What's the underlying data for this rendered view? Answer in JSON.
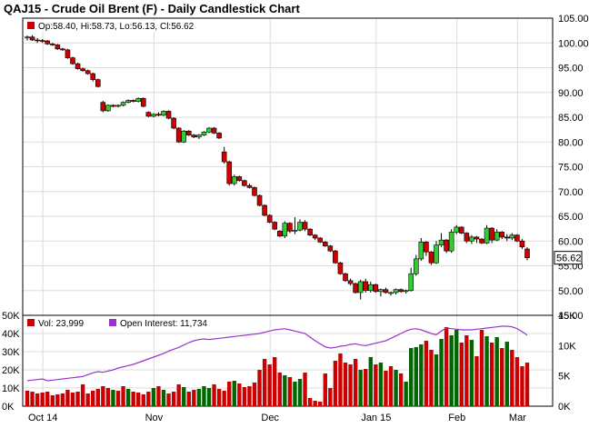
{
  "header": {
    "title": "QAJ15 - Crude Oil Brent (F) - Daily Candlestick Chart"
  },
  "price_legend": {
    "ohlc_text": "Op:58.40, Hi:58.73, Lo:56.13, Cl:56.62",
    "color": "#cc0000"
  },
  "volume_legend": {
    "vol_text": "Vol: 23,999",
    "oi_text": "Open Interest: 11,734",
    "vol_color": "#cc0000",
    "oi_color": "#9933cc"
  },
  "current_price": "56.62",
  "colors": {
    "up": "#33cc33",
    "down": "#cc0000",
    "vol_up": "#006600",
    "vol_down": "#cc0000",
    "open_interest": "#9933cc",
    "grid": "#dddddd",
    "axis": "#000000"
  },
  "chart_data": [
    {
      "type": "candlestick",
      "title": "QAJ15 - Crude Oil Brent (F) - Daily Candlestick Chart",
      "x_tick_labels": [
        "Oct 14",
        "Nov",
        "Dec",
        "Jan 15",
        "Feb",
        "Mar"
      ],
      "y_ticks": [
        105,
        100,
        95,
        90,
        85,
        80,
        75,
        70,
        65,
        60,
        55,
        50,
        45
      ],
      "ylim": [
        45,
        105
      ],
      "grid": true,
      "series": [
        {
          "name": "QAJ15",
          "ohlc": [
            [
              101.0,
              101.5,
              100.5,
              101.2
            ],
            [
              101.2,
              101.6,
              100.4,
              100.6
            ],
            [
              100.6,
              101.0,
              100.0,
              100.5
            ],
            [
              100.5,
              100.8,
              100.0,
              100.4
            ],
            [
              100.4,
              100.6,
              99.6,
              99.8
            ],
            [
              99.8,
              100.0,
              99.4,
              99.6
            ],
            [
              99.6,
              99.8,
              98.6,
              98.8
            ],
            [
              98.8,
              99.0,
              98.4,
              98.6
            ],
            [
              98.6,
              98.8,
              96.8,
              97.0
            ],
            [
              97.0,
              97.2,
              95.6,
              95.8
            ],
            [
              95.8,
              96.0,
              94.6,
              94.8
            ],
            [
              94.8,
              95.0,
              94.2,
              94.4
            ],
            [
              94.4,
              94.6,
              93.6,
              93.8
            ],
            [
              93.8,
              94.0,
              92.2,
              92.6
            ],
            [
              92.6,
              92.8,
              91.0,
              91.2
            ],
            [
              88.0,
              88.3,
              86.0,
              86.3
            ],
            [
              86.3,
              87.6,
              86.1,
              87.4
            ],
            [
              87.4,
              87.6,
              87.0,
              87.2
            ],
            [
              87.2,
              87.6,
              87.0,
              87.4
            ],
            [
              87.4,
              88.2,
              87.2,
              88.0
            ],
            [
              88.0,
              88.6,
              87.8,
              88.4
            ],
            [
              88.4,
              88.6,
              88.0,
              88.2
            ],
            [
              88.2,
              89.0,
              88.0,
              88.8
            ],
            [
              88.8,
              89.0,
              87.0,
              87.2
            ],
            [
              86.0,
              86.2,
              85.0,
              85.2
            ],
            [
              85.2,
              85.8,
              85.0,
              85.6
            ],
            [
              85.6,
              86.0,
              85.2,
              85.4
            ],
            [
              85.4,
              86.4,
              85.2,
              86.2
            ],
            [
              86.2,
              86.4,
              84.6,
              84.8
            ],
            [
              84.8,
              85.0,
              82.6,
              82.8
            ],
            [
              82.8,
              83.0,
              79.8,
              80.0
            ],
            [
              80.0,
              82.4,
              79.8,
              82.2
            ],
            [
              82.2,
              82.4,
              81.2,
              81.4
            ],
            [
              81.4,
              81.6,
              80.8,
              81.0
            ],
            [
              81.0,
              81.6,
              80.6,
              81.4
            ],
            [
              81.4,
              82.2,
              81.2,
              82.0
            ],
            [
              82.0,
              83.0,
              81.8,
              82.8
            ],
            [
              82.8,
              83.0,
              81.6,
              81.8
            ],
            [
              81.8,
              82.0,
              80.6,
              80.8
            ],
            [
              78.0,
              79.0,
              75.6,
              76.0
            ],
            [
              76.0,
              76.2,
              71.2,
              71.6
            ],
            [
              71.6,
              73.4,
              71.2,
              73.0
            ],
            [
              73.0,
              73.2,
              72.0,
              72.2
            ],
            [
              72.2,
              72.4,
              71.0,
              71.2
            ],
            [
              71.2,
              71.6,
              70.6,
              70.8
            ],
            [
              70.8,
              71.0,
              69.0,
              69.2
            ],
            [
              69.2,
              69.4,
              67.0,
              67.2
            ],
            [
              67.2,
              67.4,
              65.0,
              65.2
            ],
            [
              65.2,
              65.4,
              63.6,
              63.8
            ],
            [
              63.8,
              64.0,
              62.2,
              62.4
            ],
            [
              62.0,
              62.2,
              60.8,
              61.0
            ],
            [
              61.0,
              64.0,
              60.6,
              63.6
            ],
            [
              63.6,
              63.8,
              61.6,
              62.0
            ],
            [
              62.0,
              64.8,
              61.4,
              62.2
            ],
            [
              62.2,
              64.4,
              62.0,
              63.8
            ],
            [
              63.8,
              64.2,
              62.0,
              62.4
            ],
            [
              62.4,
              62.6,
              61.0,
              61.2
            ],
            [
              61.2,
              61.4,
              60.2,
              60.6
            ],
            [
              60.6,
              60.8,
              59.6,
              59.8
            ],
            [
              59.8,
              60.0,
              58.8,
              59.0
            ],
            [
              59.0,
              59.2,
              57.8,
              58.0
            ],
            [
              58.0,
              58.2,
              55.4,
              55.6
            ],
            [
              55.6,
              55.8,
              53.2,
              53.4
            ],
            [
              53.4,
              53.6,
              51.8,
              52.0
            ],
            [
              52.0,
              52.4,
              51.0,
              51.4
            ],
            [
              51.4,
              51.6,
              49.4,
              49.6
            ],
            [
              49.6,
              52.2,
              48.2,
              51.8
            ],
            [
              51.8,
              52.4,
              49.6,
              50.0
            ],
            [
              50.0,
              51.8,
              49.6,
              51.2
            ],
            [
              51.2,
              51.4,
              49.6,
              49.8
            ],
            [
              49.8,
              50.4,
              48.8,
              50.2
            ],
            [
              50.2,
              50.6,
              49.4,
              49.6
            ],
            [
              49.6,
              49.8,
              49.0,
              49.6
            ],
            [
              49.6,
              50.4,
              49.2,
              50.2
            ],
            [
              50.2,
              50.4,
              49.6,
              49.8
            ],
            [
              49.8,
              50.2,
              49.4,
              50.0
            ],
            [
              50.0,
              54.6,
              49.8,
              53.4
            ],
            [
              53.4,
              57.2,
              53.0,
              56.4
            ],
            [
              56.4,
              60.6,
              56.0,
              59.8
            ],
            [
              59.8,
              60.0,
              57.0,
              57.8
            ],
            [
              57.8,
              58.0,
              55.2,
              55.6
            ],
            [
              55.6,
              60.0,
              55.4,
              59.2
            ],
            [
              59.2,
              61.6,
              58.8,
              60.2
            ],
            [
              60.2,
              60.4,
              57.6,
              58.0
            ],
            [
              58.0,
              62.4,
              57.6,
              61.8
            ],
            [
              61.8,
              63.2,
              61.4,
              62.8
            ],
            [
              62.8,
              63.0,
              61.4,
              61.6
            ],
            [
              61.6,
              61.8,
              59.6,
              60.0
            ],
            [
              60.0,
              61.2,
              59.4,
              60.8
            ],
            [
              60.8,
              61.0,
              59.6,
              60.4
            ],
            [
              60.4,
              60.6,
              59.4,
              59.6
            ],
            [
              59.6,
              63.2,
              59.4,
              62.6
            ],
            [
              62.6,
              62.8,
              59.6,
              60.2
            ],
            [
              60.2,
              62.4,
              60.0,
              61.8
            ],
            [
              61.8,
              62.0,
              60.4,
              60.8
            ],
            [
              60.8,
              61.4,
              60.0,
              60.6
            ],
            [
              60.6,
              61.6,
              60.2,
              61.2
            ],
            [
              61.2,
              61.4,
              59.8,
              60.0
            ],
            [
              60.0,
              60.4,
              58.4,
              58.8
            ],
            [
              58.4,
              58.73,
              56.13,
              56.62
            ]
          ]
        }
      ]
    },
    {
      "type": "bar",
      "title": "",
      "y_tick_labels_left": [
        "50K",
        "40K",
        "30K",
        "20K",
        "10K",
        "0K"
      ],
      "y_tick_labels_right": [
        "15K",
        "10K",
        "5K",
        "0K"
      ],
      "ylim_left": [
        0,
        50000
      ],
      "ylim_right": [
        0,
        15000
      ],
      "grid": true,
      "series": [
        {
          "name": "Vol",
          "values": [
            8500,
            8000,
            7000,
            7500,
            8000,
            6000,
            6500,
            7000,
            9000,
            7500,
            8000,
            12000,
            7000,
            8500,
            9500,
            11000,
            10000,
            9000,
            8500,
            11000,
            9500,
            8000,
            7500,
            6500,
            8000,
            10000,
            11000,
            9000,
            7000,
            8000,
            12000,
            10500,
            8000,
            9000,
            9500,
            11000,
            10000,
            12000,
            9500,
            8500,
            13500,
            14000,
            12500,
            10500,
            11000,
            13000,
            20000,
            26000,
            23000,
            27000,
            18500,
            17000,
            16000,
            13500,
            15000,
            18500,
            4500,
            3000,
            2500,
            18000,
            10000,
            25000,
            29000,
            24000,
            23000,
            26000,
            20000,
            20500,
            27000,
            23000,
            24000,
            19500,
            22000,
            20000,
            18000,
            13500,
            32000,
            32500,
            34000,
            36000,
            31000,
            28500,
            37000,
            43500,
            39000,
            42000,
            35000,
            39000,
            36500,
            27500,
            42000,
            38500,
            35000,
            38000,
            32000,
            35500,
            31000,
            27000,
            22000,
            23999
          ],
          "directions": [
            "d",
            "d",
            "d",
            "d",
            "d",
            "d",
            "d",
            "d",
            "d",
            "d",
            "d",
            "d",
            "d",
            "d",
            "d",
            "d",
            "d",
            "u",
            "d",
            "d",
            "u",
            "d",
            "d",
            "d",
            "d",
            "u",
            "d",
            "u",
            "d",
            "d",
            "d",
            "u",
            "d",
            "d",
            "u",
            "u",
            "u",
            "d",
            "d",
            "d",
            "d",
            "u",
            "d",
            "d",
            "d",
            "d",
            "d",
            "d",
            "d",
            "d",
            "d",
            "u",
            "d",
            "u",
            "u",
            "d",
            "d",
            "d",
            "d",
            "d",
            "d",
            "d",
            "d",
            "d",
            "d",
            "d",
            "u",
            "d",
            "u",
            "d",
            "u",
            "d",
            "d",
            "u",
            "d",
            "u",
            "u",
            "u",
            "u",
            "d",
            "d",
            "u",
            "u",
            "d",
            "u",
            "u",
            "d",
            "d",
            "u",
            "d",
            "d",
            "u",
            "d",
            "u",
            "d",
            "u",
            "d",
            "d",
            "d",
            "d"
          ]
        },
        {
          "name": "Open Interest",
          "values": [
            4200,
            4300,
            4400,
            4500,
            4200,
            4300,
            4400,
            4500,
            4600,
            4700,
            4800,
            4900,
            5200,
            5500,
            5700,
            5600,
            5800,
            6000,
            6300,
            6500,
            6700,
            6900,
            7200,
            7500,
            7800,
            8100,
            8400,
            8700,
            9100,
            9400,
            9700,
            10100,
            10500,
            10800,
            11000,
            11100,
            11000,
            11100,
            11200,
            11300,
            11400,
            11500,
            11600,
            11700,
            11800,
            11900,
            12000,
            12200,
            12400,
            12600,
            12700,
            12800,
            12600,
            12400,
            12200,
            12000,
            11400,
            10800,
            10300,
            9800,
            9600,
            9700,
            9900,
            10000,
            10200,
            10300,
            10100,
            10000,
            10200,
            10400,
            10600,
            10800,
            11200,
            11600,
            12000,
            12400,
            12700,
            12800,
            12600,
            12300,
            12000,
            11800,
            12400,
            12900,
            12800,
            12700,
            12600,
            12600,
            12600,
            12700,
            12800,
            12900,
            13000,
            13100,
            13200,
            13200,
            13100,
            12800,
            12300,
            11734
          ]
        }
      ]
    }
  ]
}
